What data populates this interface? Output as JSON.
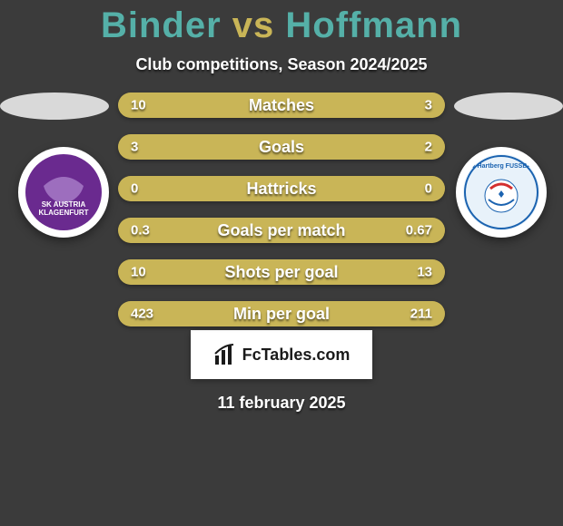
{
  "background_color": "#3b3b3b",
  "title": {
    "player_a": "Binder",
    "vs": "vs",
    "player_b": "Hoffmann",
    "color_a": "#55b0a8",
    "color_vs": "#c9b557",
    "color_b": "#55b0a8"
  },
  "subtitle": "Club competitions, Season 2024/2025",
  "ellipse_color": "#d9d9d9",
  "badge_a": {
    "outer_bg": "#ffffff",
    "inner_bg": "#6a2a8f",
    "text": "SK AUSTRIA KLAGENFURT"
  },
  "badge_b": {
    "outer_bg": "#ffffff",
    "inner_bg": "#e8f2fa",
    "text": "TSV Hartberg FUSSBALL",
    "text_color": "#1b63b0",
    "accent": "#d32f2f"
  },
  "bars": {
    "track_color": "#a7943f",
    "fill_a_color": "#c9b557",
    "fill_b_color": "#c9b557",
    "label_color": "#ffffff",
    "value_color": "#ffffff",
    "rows": [
      {
        "label": "Matches",
        "a": "10",
        "b": "3",
        "a_pct": 77,
        "b_pct": 23
      },
      {
        "label": "Goals",
        "a": "3",
        "b": "2",
        "a_pct": 60,
        "b_pct": 40
      },
      {
        "label": "Hattricks",
        "a": "0",
        "b": "0",
        "a_pct": 50,
        "b_pct": 50
      },
      {
        "label": "Goals per match",
        "a": "0.3",
        "b": "0.67",
        "a_pct": 31,
        "b_pct": 69
      },
      {
        "label": "Shots per goal",
        "a": "10",
        "b": "13",
        "a_pct": 43,
        "b_pct": 57
      },
      {
        "label": "Min per goal",
        "a": "423",
        "b": "211",
        "a_pct": 67,
        "b_pct": 33
      }
    ]
  },
  "footer": {
    "bg_color": "#ffffff",
    "text_color": "#1a1a1a",
    "brand": "FcTables.com"
  },
  "date_text": "11 february 2025"
}
